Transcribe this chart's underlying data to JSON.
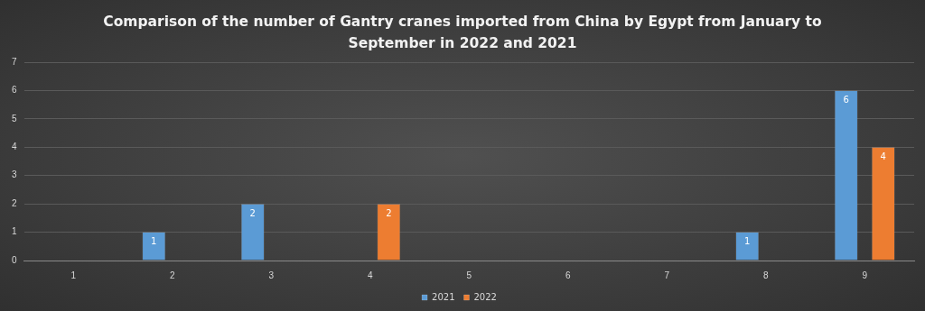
{
  "chart_data": {
    "type": "bar",
    "title": "Comparison of the number of Gantry cranes imported from China by Egypt from January to September in 2022 and 2021",
    "categories": [
      "1",
      "2",
      "3",
      "4",
      "5",
      "6",
      "7",
      "8",
      "9"
    ],
    "series": [
      {
        "name": "2021",
        "color": "#5b9bd5",
        "values": [
          0,
          1,
          2,
          0,
          0,
          0,
          0,
          1,
          6
        ],
        "value_labels": [
          null,
          "1",
          "2",
          null,
          null,
          null,
          null,
          "1",
          "6"
        ]
      },
      {
        "name": "2022",
        "color": "#ed7d31",
        "values": [
          0,
          0,
          0,
          2,
          0,
          0,
          0,
          0,
          4
        ],
        "value_labels": [
          null,
          null,
          null,
          "2",
          null,
          null,
          null,
          null,
          "4"
        ]
      }
    ],
    "ylim": [
      0,
      7
    ],
    "yticks": [
      0,
      1,
      2,
      3,
      4,
      5,
      6,
      7
    ],
    "grid": "y",
    "legend": "bottom"
  }
}
